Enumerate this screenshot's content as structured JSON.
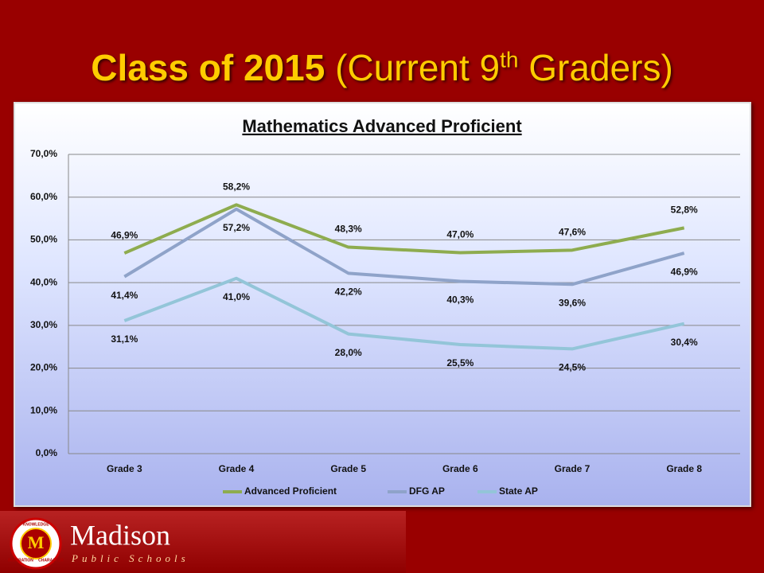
{
  "slide": {
    "title_bold": "Class of 2015",
    "title_main": "(Current 9",
    "title_sup": "th",
    "title_end": " Graders)",
    "logo": {
      "emblem": "M",
      "ring_words": [
        "KNOWLEDGE",
        "CHARACTER",
        "INSPIRATION"
      ],
      "name": "Madison",
      "tagline": "Public Schools"
    }
  },
  "chart_data": {
    "type": "line",
    "title": "Mathematics Advanced Proficient",
    "categories": [
      "Grade 3",
      "Grade 4",
      "Grade 5",
      "Grade 6",
      "Grade 7",
      "Grade 8"
    ],
    "series": [
      {
        "name": "Advanced Proficient",
        "color": "#8eac4f",
        "values": [
          46.9,
          58.2,
          48.3,
          47.0,
          47.6,
          52.8
        ],
        "value_labels": [
          "46,9%",
          "58,2%",
          "48,3%",
          "47,0%",
          "47,6%",
          "52,8%"
        ]
      },
      {
        "name": "DFG AP",
        "color": "#8fa3c9",
        "values": [
          41.4,
          57.2,
          42.2,
          40.3,
          39.6,
          46.9
        ],
        "value_labels": [
          "41,4%",
          "57,2%",
          "42,2%",
          "40,3%",
          "39,6%",
          "46,9%"
        ]
      },
      {
        "name": "State AP",
        "color": "#93c5d8",
        "values": [
          31.1,
          41.0,
          28.0,
          25.5,
          24.5,
          30.4
        ],
        "value_labels": [
          "31,1%",
          "41,0%",
          "28,0%",
          "25,5%",
          "24,5%",
          "30,4%"
        ]
      }
    ],
    "ylim": [
      0,
      70
    ],
    "yticks": [
      {
        "value": 0,
        "label": "0,0%"
      },
      {
        "value": 10,
        "label": "10,0%"
      },
      {
        "value": 20,
        "label": "20,0%"
      },
      {
        "value": 30,
        "label": "30,0%"
      },
      {
        "value": 40,
        "label": "40,0%"
      },
      {
        "value": 50,
        "label": "50,0%"
      },
      {
        "value": 60,
        "label": "60,0%"
      },
      {
        "value": 70,
        "label": "70,0%"
      }
    ],
    "grid": true,
    "legend": "bottom"
  }
}
